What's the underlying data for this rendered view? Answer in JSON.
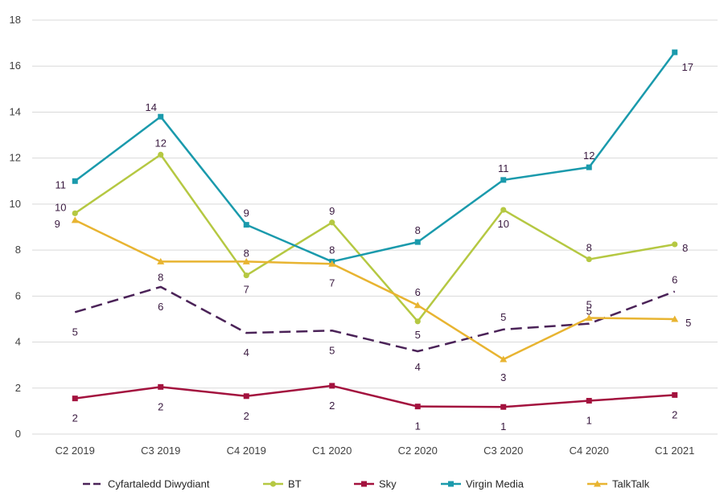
{
  "chart_data": {
    "type": "line",
    "title": "",
    "xlabel": "",
    "ylabel": "",
    "ylim": [
      0,
      18
    ],
    "yticks": [
      0,
      2,
      4,
      6,
      8,
      10,
      12,
      14,
      16,
      18
    ],
    "grid": true,
    "legend_position": "bottom",
    "categories": [
      "C2 2019",
      "C3 2019",
      "C4 2019",
      "C1 2020",
      "C2 2020",
      "C3 2020",
      "C4 2020",
      "C1 2021"
    ],
    "series": [
      {
        "name": "Cyfartaledd Diwydiant",
        "color": "#4b2358",
        "marker": "none",
        "dash": true,
        "values": [
          5.3,
          6.4,
          4.4,
          4.5,
          3.6,
          4.55,
          4.8,
          6.2
        ],
        "labels": [
          "5",
          "6",
          "4",
          "5",
          "4",
          "5",
          "5",
          "6"
        ]
      },
      {
        "name": "BT",
        "color": "#b5c842",
        "marker": "circle",
        "dash": false,
        "values": [
          9.6,
          12.15,
          6.9,
          9.2,
          4.9,
          9.75,
          7.6,
          8.25
        ],
        "labels": [
          "10",
          "12",
          "7",
          "9",
          "5",
          "10",
          "8",
          "8"
        ]
      },
      {
        "name": "Sky",
        "color": "#a3123e",
        "marker": "square",
        "dash": false,
        "values": [
          1.55,
          2.05,
          1.65,
          2.1,
          1.2,
          1.18,
          1.45,
          1.7
        ],
        "labels": [
          "2",
          "2",
          "2",
          "2",
          "1",
          "1",
          "1",
          "2"
        ]
      },
      {
        "name": "Virgin Media",
        "color": "#1a9aac",
        "marker": "square",
        "dash": false,
        "values": [
          11.0,
          13.8,
          9.1,
          7.5,
          8.35,
          11.05,
          11.6,
          16.6
        ],
        "labels": [
          "11",
          "14",
          "9",
          "8",
          "8",
          "11",
          "12",
          "17"
        ]
      },
      {
        "name": "TalkTalk",
        "color": "#e8b431",
        "marker": "triangle",
        "dash": false,
        "values": [
          9.3,
          7.5,
          7.5,
          7.4,
          5.6,
          3.25,
          5.05,
          5.0
        ],
        "labels": [
          "9",
          "8",
          "8",
          "7",
          "6",
          "3",
          "5",
          "5"
        ]
      }
    ]
  }
}
